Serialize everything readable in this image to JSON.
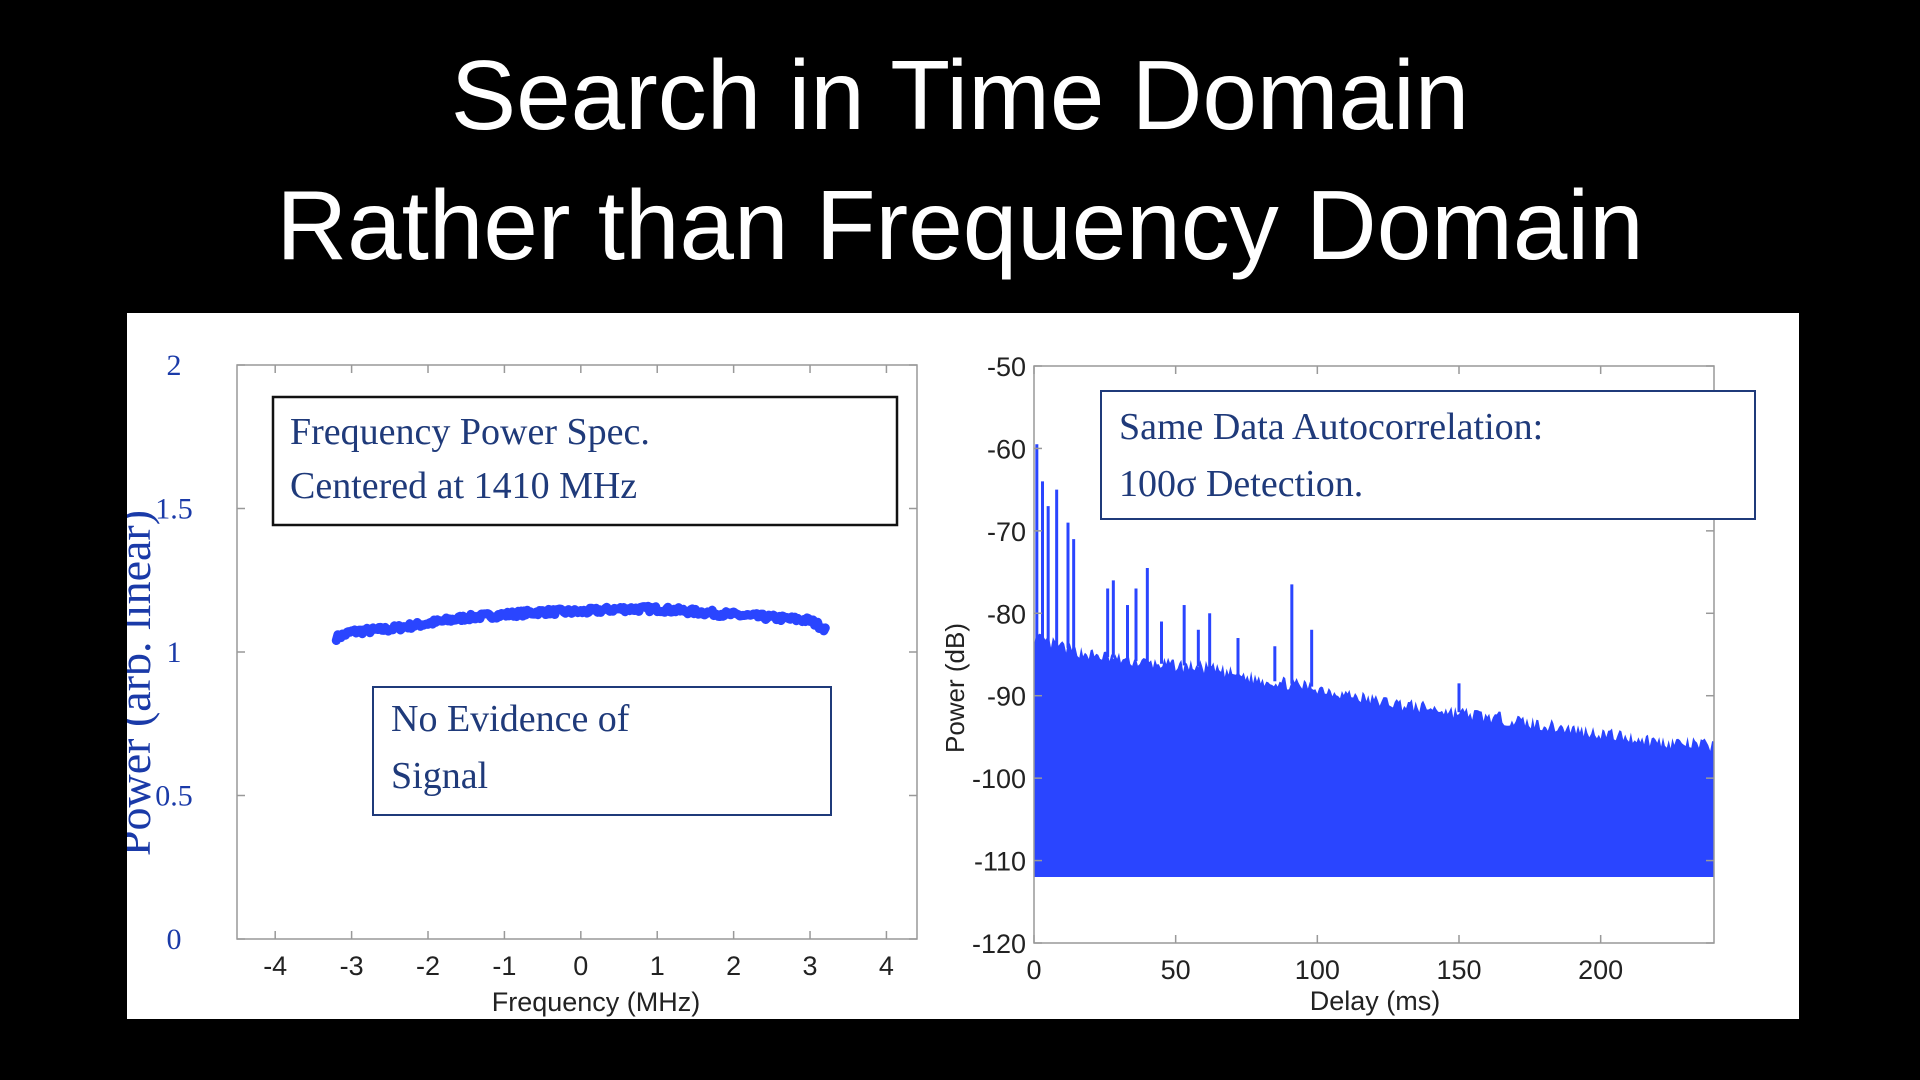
{
  "slide": {
    "title_line1": "Search in Time Domain",
    "title_line2": "Rather than Frequency Domain"
  },
  "colors": {
    "background": "#000000",
    "title": "#ffffff",
    "panel": "#ffffff",
    "data": "#2a45ff",
    "annotation_text": "#1f3a7a",
    "frame": "#999999"
  },
  "chart_data": [
    {
      "type": "line",
      "xlabel": "Frequency (MHz)",
      "ylabel": "Power (arb. linear)",
      "xlim": [
        -4.5,
        4.4
      ],
      "ylim": [
        0,
        2
      ],
      "xticks": [
        -4,
        -3,
        -2,
        -1,
        0,
        1,
        2,
        3,
        4
      ],
      "xtick_labels": [
        "-4",
        "-3",
        "-2",
        "-1",
        "0",
        "1",
        "2",
        "3",
        "4"
      ],
      "yticks": [
        0,
        0.5,
        1,
        1.5,
        2
      ],
      "ytick_labels": [
        "0",
        "0.5",
        "1",
        "1.5",
        "2"
      ],
      "grid": false,
      "series": [
        {
          "x": [
            -3.2,
            -3.0,
            -2.5,
            -2.0,
            -1.5,
            -1.0,
            -0.5,
            0.0,
            0.5,
            1.0,
            1.5,
            2.0,
            2.5,
            3.0,
            3.2
          ],
          "values": [
            1.05,
            1.07,
            1.08,
            1.1,
            1.12,
            1.13,
            1.14,
            1.14,
            1.15,
            1.15,
            1.14,
            1.13,
            1.12,
            1.11,
            1.08
          ]
        }
      ],
      "annotations": [
        {
          "text_line1": "Frequency Power Spec.",
          "text_line2": "Centered at 1410 MHz"
        },
        {
          "text_line1": "No Evidence of",
          "text_line2": "Signal"
        }
      ]
    },
    {
      "type": "area",
      "xlabel": "Delay (ms)",
      "ylabel": "Power (dB)",
      "xlim": [
        0,
        240
      ],
      "ylim": [
        -120,
        -50
      ],
      "xticks": [
        0,
        50,
        100,
        150,
        200
      ],
      "xtick_labels": [
        "0",
        "50",
        "100",
        "150",
        "200"
      ],
      "yticks": [
        -120,
        -110,
        -100,
        -90,
        -80,
        -70,
        -60,
        -50
      ],
      "ytick_labels": [
        "-120",
        "-110",
        "-100",
        "-90",
        "-80",
        "-70",
        "-60",
        "-50"
      ],
      "grid": false,
      "floor": -112,
      "envelope": {
        "x": [
          0,
          20,
          40,
          60,
          80,
          100,
          120,
          140,
          160,
          180,
          200,
          220,
          240
        ],
        "values": [
          -83,
          -85,
          -86,
          -86.5,
          -88,
          -89,
          -90.5,
          -91.5,
          -92.5,
          -93.5,
          -94.5,
          -95.5,
          -96
        ]
      },
      "peaks": {
        "x": [
          1,
          3,
          5,
          8,
          12,
          14,
          26,
          28,
          33,
          36,
          40,
          45,
          53,
          58,
          62,
          72,
          85,
          91,
          98,
          150
        ],
        "values": [
          -59.5,
          -64,
          -67,
          -65,
          -69,
          -71,
          -77,
          -76,
          -79,
          -77,
          -74.5,
          -81,
          -79,
          -82,
          -80,
          -83,
          -84,
          -76.5,
          -82,
          -88.5
        ]
      },
      "annotations": [
        {
          "text_line1": "Same Data Autocorrelation:",
          "text_line2": "100σ Detection."
        }
      ]
    }
  ]
}
